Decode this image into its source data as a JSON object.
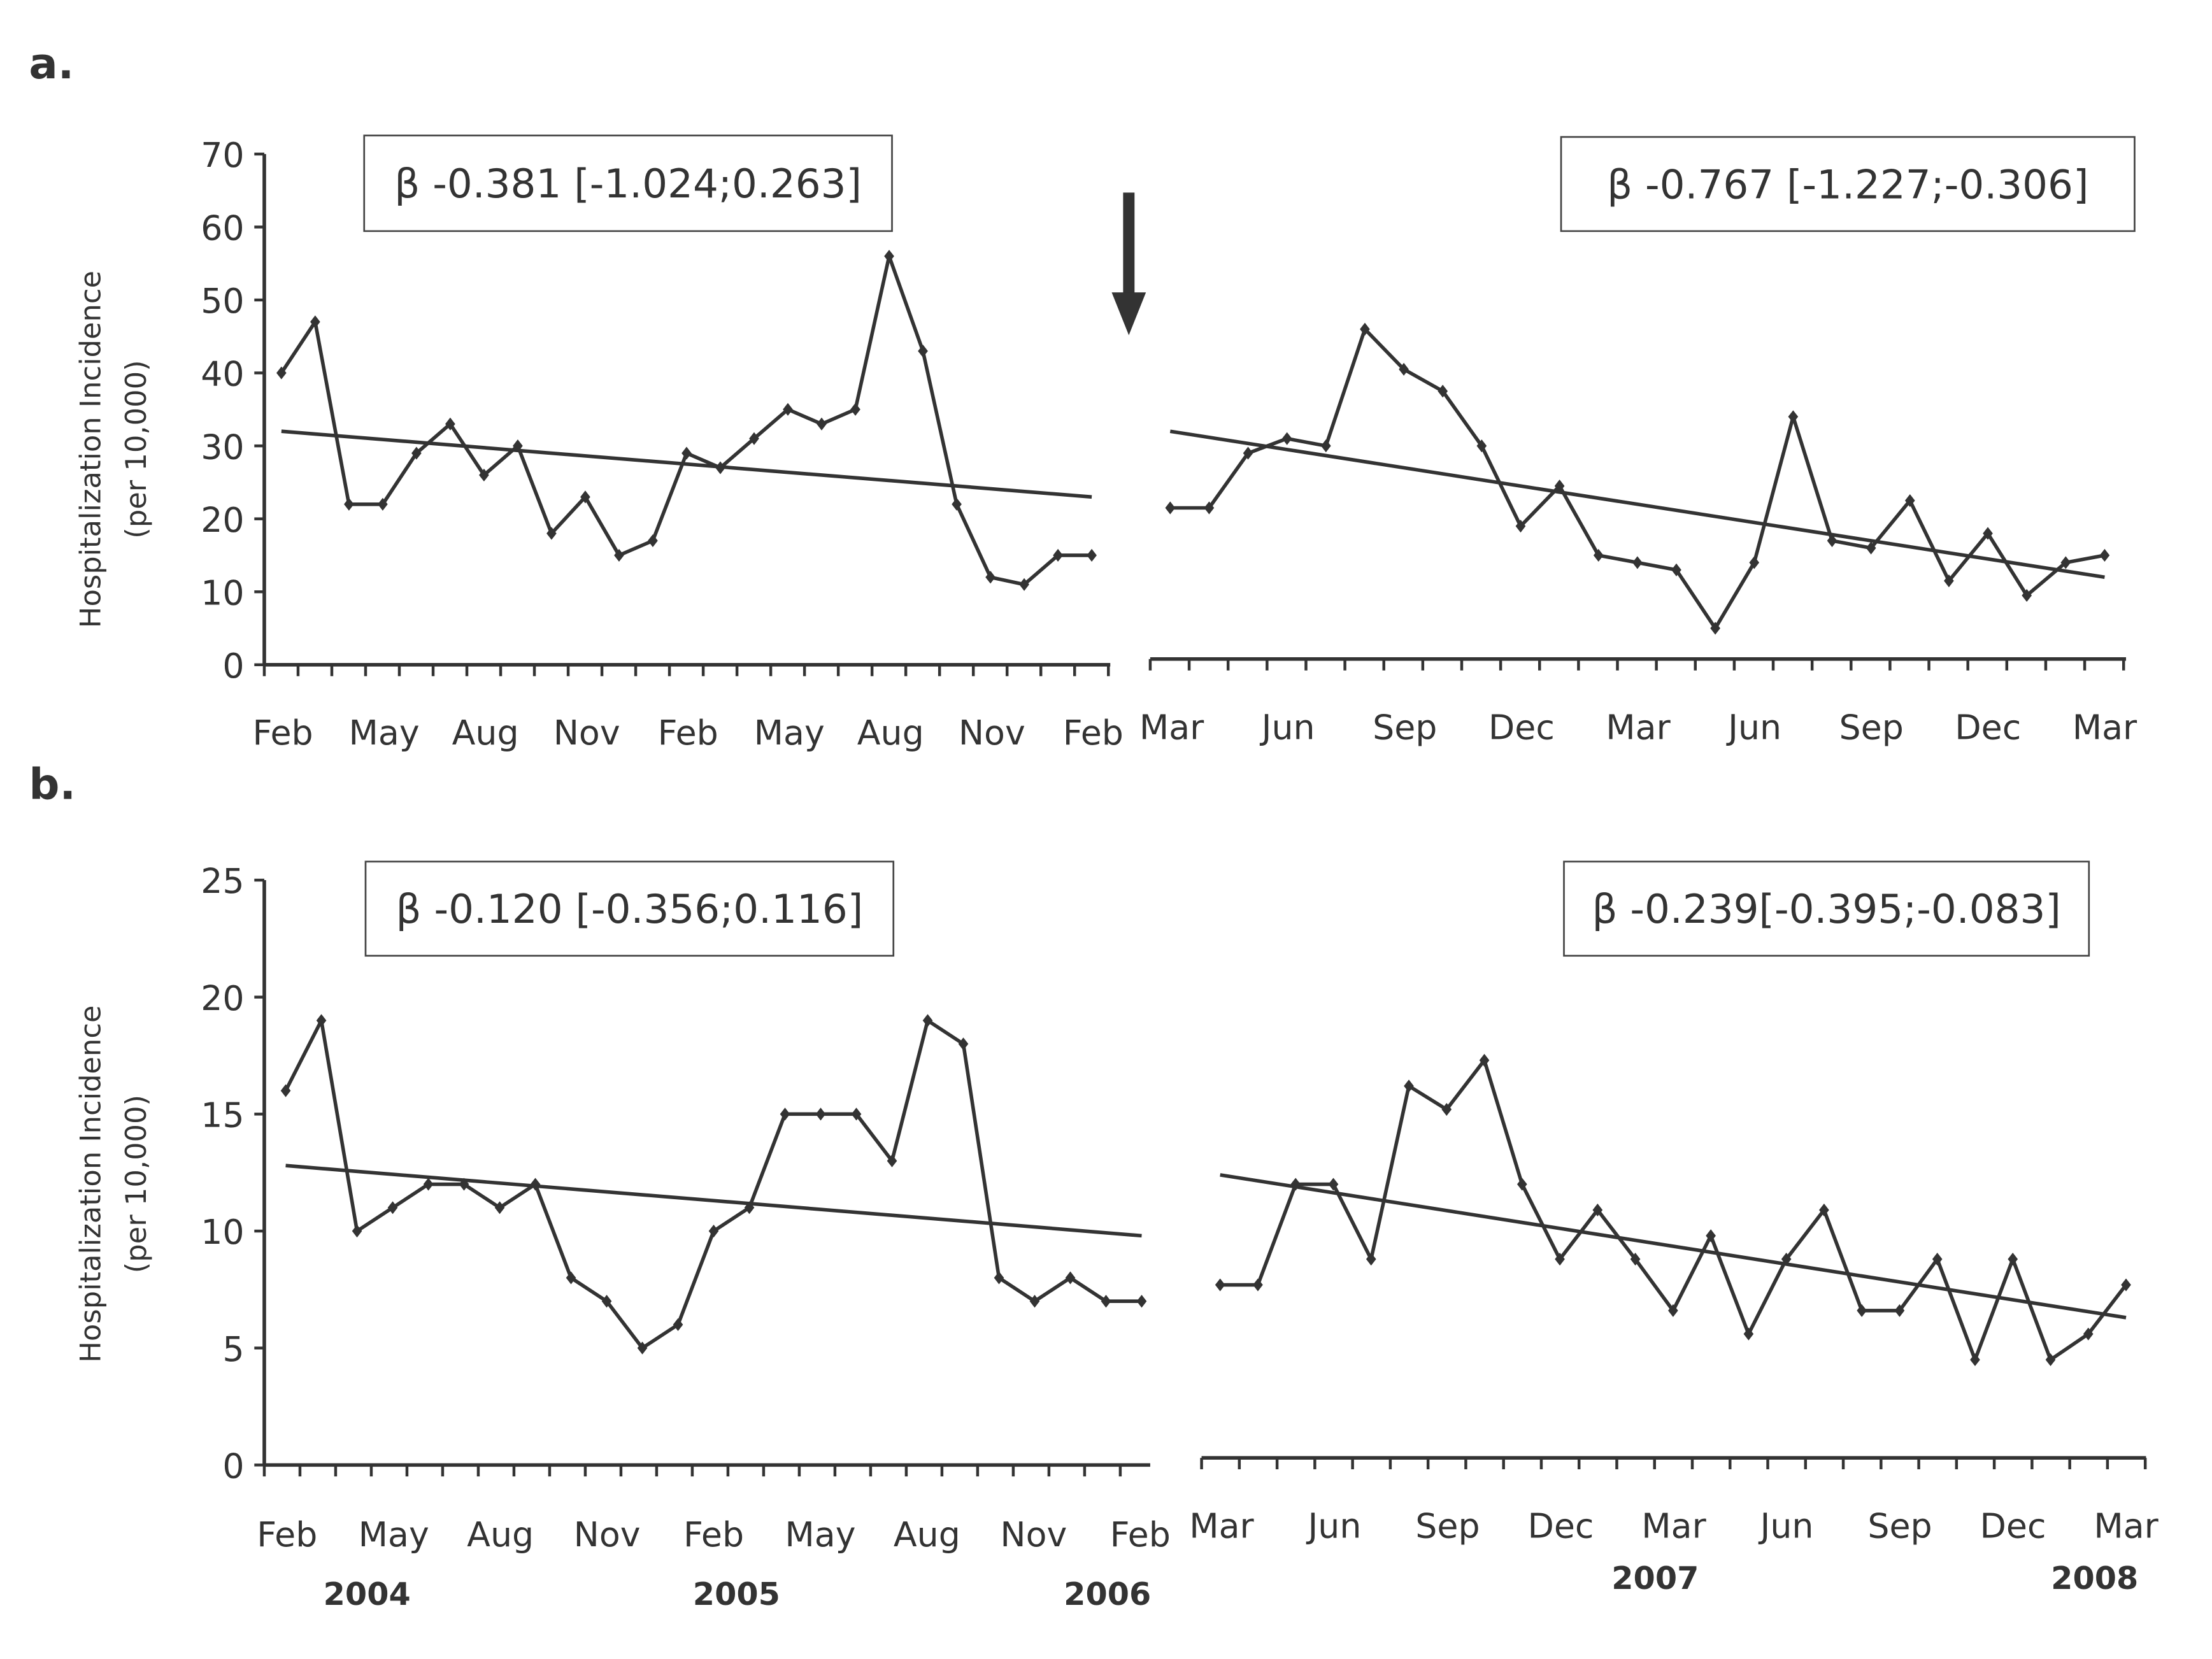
{
  "panel_labels": [
    "a.",
    "b."
  ],
  "y_axis_label": [
    "Hospitalization Incidence",
    "(per 10,000)"
  ],
  "years": {
    "left": [
      "2004",
      "2005",
      "2006"
    ],
    "right": [
      "2007",
      "2008"
    ]
  },
  "chart_data": [
    {
      "type": "line",
      "panel": "a",
      "segment": "pre",
      "annotation": "β -0.381 [-1.024;0.263]",
      "ylim": [
        0,
        70
      ],
      "yticks": [
        0,
        10,
        20,
        30,
        40,
        50,
        60,
        70
      ],
      "xtick_labels": [
        "Feb",
        "May",
        "Aug",
        "Nov",
        "Feb",
        "May",
        "Aug",
        "Nov",
        "Feb"
      ],
      "x_range": "Feb 2004 - Feb 2006 (monthly)",
      "values": [
        40,
        47,
        22,
        22,
        29,
        33,
        26,
        30,
        18,
        23,
        15,
        17,
        29,
        27,
        31,
        35,
        33,
        35,
        56,
        43,
        22,
        12,
        11,
        15,
        15
      ],
      "trend": [
        32,
        23
      ]
    },
    {
      "type": "line",
      "panel": "a",
      "segment": "post",
      "annotation": "β -0.767 [-1.227;-0.306]",
      "ylim": [
        0,
        70
      ],
      "xtick_labels": [
        "Mar",
        "Jun",
        "Sep",
        "Dec",
        "Mar",
        "Jun",
        "Sep",
        "Dec",
        "Mar"
      ],
      "x_range": "Mar 2006 - Mar 2008 (monthly)",
      "values": [
        21.5,
        21.5,
        29,
        31,
        30,
        46,
        40.5,
        37.5,
        30,
        19,
        24.5,
        15,
        14,
        13,
        5,
        14,
        34,
        17,
        16,
        22.5,
        11.5,
        18,
        9.5,
        14,
        15
      ],
      "trend": [
        32,
        12
      ]
    },
    {
      "type": "line",
      "panel": "b",
      "segment": "pre",
      "annotation": "β -0.120 [-0.356;0.116]",
      "ylim": [
        0,
        25
      ],
      "yticks": [
        0,
        5,
        10,
        15,
        20,
        25
      ],
      "xtick_labels": [
        "Feb",
        "May",
        "Aug",
        "Nov",
        "Feb",
        "May",
        "Aug",
        "Nov",
        "Feb"
      ],
      "x_range": "Feb 2004 - Feb 2006 (monthly)",
      "values": [
        16,
        19,
        10,
        11,
        12,
        12,
        11,
        12,
        8,
        7,
        5,
        6,
        10,
        11,
        15,
        15,
        15,
        13,
        19,
        18,
        8,
        7,
        8,
        7,
        7
      ],
      "trend": [
        12.8,
        9.8
      ]
    },
    {
      "type": "line",
      "panel": "b",
      "segment": "post",
      "annotation": "β -0.239[-0.395;-0.083]",
      "ylim": [
        0,
        25
      ],
      "xtick_labels": [
        "Mar",
        "Jun",
        "Sep",
        "Dec",
        "Mar",
        "Jun",
        "Sep",
        "Dec",
        "Mar"
      ],
      "x_range": "Mar 2006 - Mar 2008 (monthly)",
      "values": [
        7.7,
        7.7,
        12,
        12,
        8.8,
        16.2,
        15.2,
        17.3,
        12,
        8.8,
        10.9,
        8.8,
        6.6,
        9.8,
        5.6,
        8.8,
        10.9,
        6.6,
        6.6,
        8.8,
        4.5,
        8.8,
        4.5,
        5.6,
        7.7
      ],
      "trend": [
        12.4,
        6.3
      ]
    }
  ],
  "colors": {
    "line": "#333333",
    "axis": "#333333"
  }
}
